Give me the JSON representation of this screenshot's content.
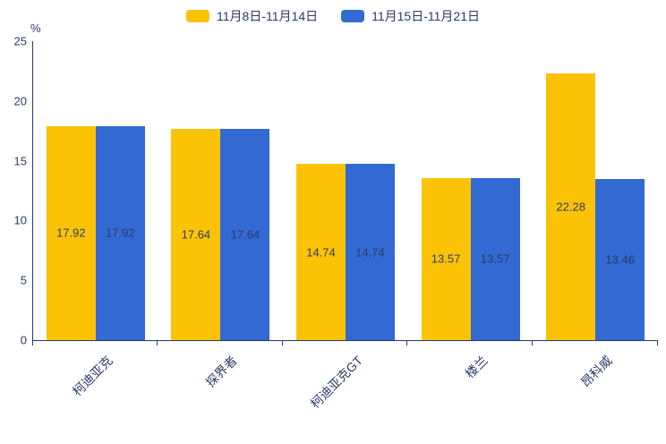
{
  "colors": {
    "series1": "#FCC306",
    "series2": "#3269D2",
    "axis": "#2b3a67",
    "text": "#2b3a67"
  },
  "chart_data": {
    "type": "bar",
    "title": "",
    "xlabel": "",
    "ylabel": "%",
    "ylim": [
      0,
      25
    ],
    "yticks": [
      0,
      5,
      10,
      15,
      20,
      25
    ],
    "grid": false,
    "legend_position": "top-center",
    "categories": [
      "柯迪亚克",
      "探界者",
      "柯迪亚克GT",
      "楼兰",
      "昂科威"
    ],
    "series": [
      {
        "name": "11月8日-11月14日",
        "color": "#FCC306",
        "values": [
          17.92,
          17.64,
          14.74,
          13.57,
          22.28
        ]
      },
      {
        "name": "11月15日-11月21日",
        "color": "#3269D2",
        "values": [
          17.92,
          17.64,
          14.74,
          13.57,
          13.46
        ]
      }
    ]
  }
}
